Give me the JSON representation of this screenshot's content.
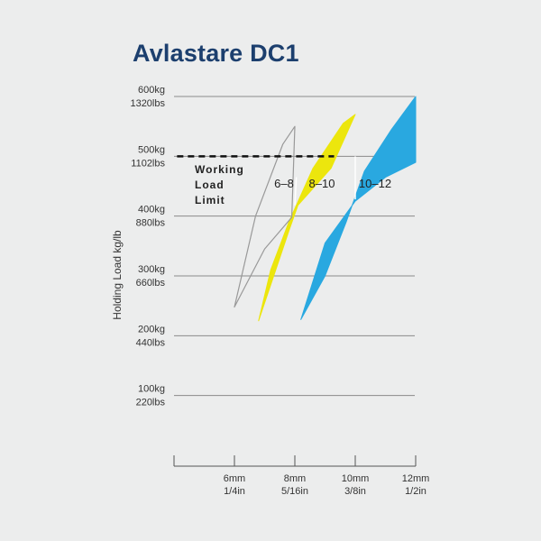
{
  "title": "Avlastare DC1",
  "chart_data": {
    "type": "area",
    "title": "Avlastare DC1",
    "ylabel": "Holding Load kg/lb",
    "xlabel": "",
    "y_ticks": [
      {
        "value": 100,
        "kg": "100kg",
        "lbs": "220lbs"
      },
      {
        "value": 200,
        "kg": "200kg",
        "lbs": "440lbs"
      },
      {
        "value": 300,
        "kg": "300kg",
        "lbs": "660lbs"
      },
      {
        "value": 400,
        "kg": "400kg",
        "lbs": "880lbs"
      },
      {
        "value": 500,
        "kg": "500kg",
        "lbs": "1102lbs"
      },
      {
        "value": 600,
        "kg": "600kg",
        "lbs": "1320lbs"
      }
    ],
    "x_ticks": [
      {
        "value": 6,
        "mm": "6mm",
        "in": "1/4in"
      },
      {
        "value": 8,
        "mm": "8mm",
        "in": "5/16in"
      },
      {
        "value": 10,
        "mm": "10mm",
        "in": "3/8in"
      },
      {
        "value": 12,
        "mm": "12mm",
        "in": "1/2in"
      }
    ],
    "xlim": [
      4,
      12
    ],
    "ylim": [
      0,
      600
    ],
    "gridlines": [
      100,
      200,
      300,
      400,
      500,
      600
    ],
    "working_load_limit": {
      "value": 500,
      "label_lines": [
        "Working",
        "Load",
        "Limit"
      ]
    },
    "series": [
      {
        "name": "6–8",
        "color": "#ffffff",
        "stroke": "#999999",
        "outline": [
          [
            6.0,
            248
          ],
          [
            7.0,
            345
          ],
          [
            7.9,
            398
          ],
          [
            8.0,
            550
          ],
          [
            7.6,
            520
          ],
          [
            6.7,
            400
          ],
          [
            6.0,
            248
          ]
        ]
      },
      {
        "name": "8–10",
        "color": "#ece60d",
        "stroke": "#ece60d",
        "outline": [
          [
            6.8,
            225
          ],
          [
            7.8,
            375
          ],
          [
            8.1,
            418
          ],
          [
            9.2,
            480
          ],
          [
            10.0,
            570
          ],
          [
            9.6,
            555
          ],
          [
            8.6,
            480
          ],
          [
            7.8,
            390
          ],
          [
            7.2,
            310
          ],
          [
            6.8,
            225
          ]
        ]
      },
      {
        "name": "10–12",
        "color": "#29a8e0",
        "stroke": "#29a8e0",
        "outline": [
          [
            8.2,
            227
          ],
          [
            9.0,
            355
          ],
          [
            10.0,
            425
          ],
          [
            11.0,
            465
          ],
          [
            12.0,
            490
          ],
          [
            12.0,
            600
          ],
          [
            11.2,
            545
          ],
          [
            10.3,
            475
          ],
          [
            9.7,
            390
          ],
          [
            9.0,
            300
          ],
          [
            8.2,
            227
          ]
        ]
      }
    ],
    "grid": true,
    "legend": "none"
  }
}
